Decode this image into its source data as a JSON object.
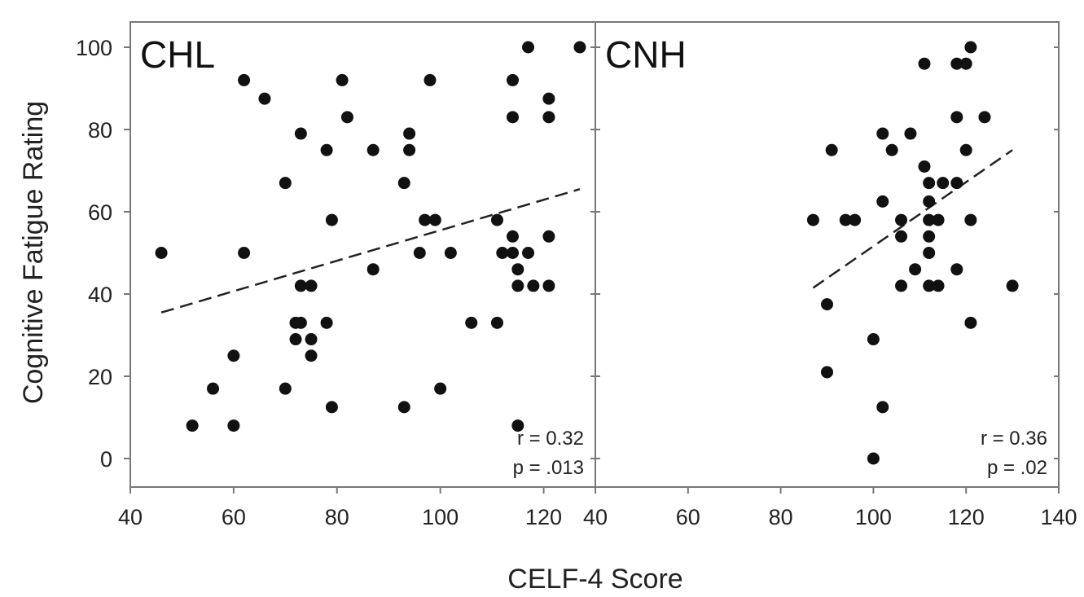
{
  "chart_data": [
    {
      "type": "scatter",
      "title": "CHL",
      "xlim": [
        40,
        130
      ],
      "ylim": [
        0,
        100
      ],
      "xticks": [
        "40",
        "60",
        "80",
        "100",
        "120"
      ],
      "yticks": [
        "0",
        "20",
        "40",
        "60",
        "80",
        "100"
      ],
      "stat_r": "r = 0.32",
      "stat_p": "p = .013",
      "trendline": {
        "style": "dashed",
        "from": [
          46,
          35.5
        ],
        "to": [
          127,
          65.5
        ]
      },
      "points": [
        {
          "x": 46,
          "y": 50
        },
        {
          "x": 52,
          "y": 8
        },
        {
          "x": 56,
          "y": 17
        },
        {
          "x": 60,
          "y": 25
        },
        {
          "x": 60,
          "y": 8
        },
        {
          "x": 62,
          "y": 92
        },
        {
          "x": 62,
          "y": 50
        },
        {
          "x": 66,
          "y": 87.5
        },
        {
          "x": 70,
          "y": 67
        },
        {
          "x": 70,
          "y": 17
        },
        {
          "x": 72,
          "y": 33
        },
        {
          "x": 72,
          "y": 29
        },
        {
          "x": 73,
          "y": 79
        },
        {
          "x": 73,
          "y": 42
        },
        {
          "x": 73,
          "y": 33
        },
        {
          "x": 75,
          "y": 42
        },
        {
          "x": 75,
          "y": 29
        },
        {
          "x": 75,
          "y": 25
        },
        {
          "x": 78,
          "y": 75
        },
        {
          "x": 78,
          "y": 33
        },
        {
          "x": 79,
          "y": 58
        },
        {
          "x": 79,
          "y": 12.5
        },
        {
          "x": 81,
          "y": 92
        },
        {
          "x": 82,
          "y": 83
        },
        {
          "x": 87,
          "y": 75
        },
        {
          "x": 87,
          "y": 46
        },
        {
          "x": 93,
          "y": 67
        },
        {
          "x": 93,
          "y": 12.5
        },
        {
          "x": 94,
          "y": 79
        },
        {
          "x": 94,
          "y": 75
        },
        {
          "x": 96,
          "y": 50
        },
        {
          "x": 97,
          "y": 58
        },
        {
          "x": 98,
          "y": 92
        },
        {
          "x": 99,
          "y": 58
        },
        {
          "x": 100,
          "y": 17
        },
        {
          "x": 102,
          "y": 50
        },
        {
          "x": 106,
          "y": 33
        },
        {
          "x": 111,
          "y": 58
        },
        {
          "x": 111,
          "y": 33
        },
        {
          "x": 112,
          "y": 50
        },
        {
          "x": 114,
          "y": 92
        },
        {
          "x": 114,
          "y": 83
        },
        {
          "x": 114,
          "y": 54
        },
        {
          "x": 114,
          "y": 50
        },
        {
          "x": 115,
          "y": 46
        },
        {
          "x": 115,
          "y": 42
        },
        {
          "x": 115,
          "y": 8
        },
        {
          "x": 117,
          "y": 100
        },
        {
          "x": 117,
          "y": 50
        },
        {
          "x": 118,
          "y": 42
        },
        {
          "x": 121,
          "y": 87.5
        },
        {
          "x": 121,
          "y": 83
        },
        {
          "x": 121,
          "y": 54
        },
        {
          "x": 121,
          "y": 42
        },
        {
          "x": 127,
          "y": 100
        }
      ]
    },
    {
      "type": "scatter",
      "title": "CNH",
      "xlim": [
        40,
        140
      ],
      "ylim": [
        0,
        100
      ],
      "xticks": [
        "40",
        "60",
        "80",
        "100",
        "120",
        "140"
      ],
      "yticks": [
        "0",
        "20",
        "40",
        "60",
        "80",
        "100"
      ],
      "stat_r": "r = 0.36",
      "stat_p": "p = .02",
      "trendline": {
        "style": "dashed",
        "from": [
          87,
          41.5
        ],
        "to": [
          130,
          75
        ]
      },
      "points": [
        {
          "x": 87,
          "y": 58
        },
        {
          "x": 90,
          "y": 37.5
        },
        {
          "x": 90,
          "y": 21
        },
        {
          "x": 91,
          "y": 75
        },
        {
          "x": 94,
          "y": 58
        },
        {
          "x": 96,
          "y": 58
        },
        {
          "x": 100,
          "y": 29
        },
        {
          "x": 100,
          "y": 0
        },
        {
          "x": 102,
          "y": 79
        },
        {
          "x": 102,
          "y": 62.5
        },
        {
          "x": 102,
          "y": 12.5
        },
        {
          "x": 104,
          "y": 75
        },
        {
          "x": 106,
          "y": 58
        },
        {
          "x": 106,
          "y": 54
        },
        {
          "x": 106,
          "y": 42
        },
        {
          "x": 108,
          "y": 79
        },
        {
          "x": 109,
          "y": 46
        },
        {
          "x": 111,
          "y": 96
        },
        {
          "x": 111,
          "y": 71
        },
        {
          "x": 112,
          "y": 67
        },
        {
          "x": 112,
          "y": 62.5
        },
        {
          "x": 112,
          "y": 58
        },
        {
          "x": 112,
          "y": 54
        },
        {
          "x": 112,
          "y": 50
        },
        {
          "x": 112,
          "y": 42
        },
        {
          "x": 114,
          "y": 58
        },
        {
          "x": 114,
          "y": 42
        },
        {
          "x": 115,
          "y": 67
        },
        {
          "x": 118,
          "y": 96
        },
        {
          "x": 118,
          "y": 83
        },
        {
          "x": 118,
          "y": 67
        },
        {
          "x": 118,
          "y": 46
        },
        {
          "x": 120,
          "y": 96
        },
        {
          "x": 120,
          "y": 75
        },
        {
          "x": 121,
          "y": 100
        },
        {
          "x": 121,
          "y": 58
        },
        {
          "x": 121,
          "y": 33
        },
        {
          "x": 124,
          "y": 83
        },
        {
          "x": 130,
          "y": 42
        }
      ]
    }
  ],
  "xlabel": "CELF-4 Score",
  "ylabel": "Cognitive Fatigue Rating",
  "colors": {
    "point": "#111111",
    "axis": "#777777",
    "trend": "#222222"
  }
}
